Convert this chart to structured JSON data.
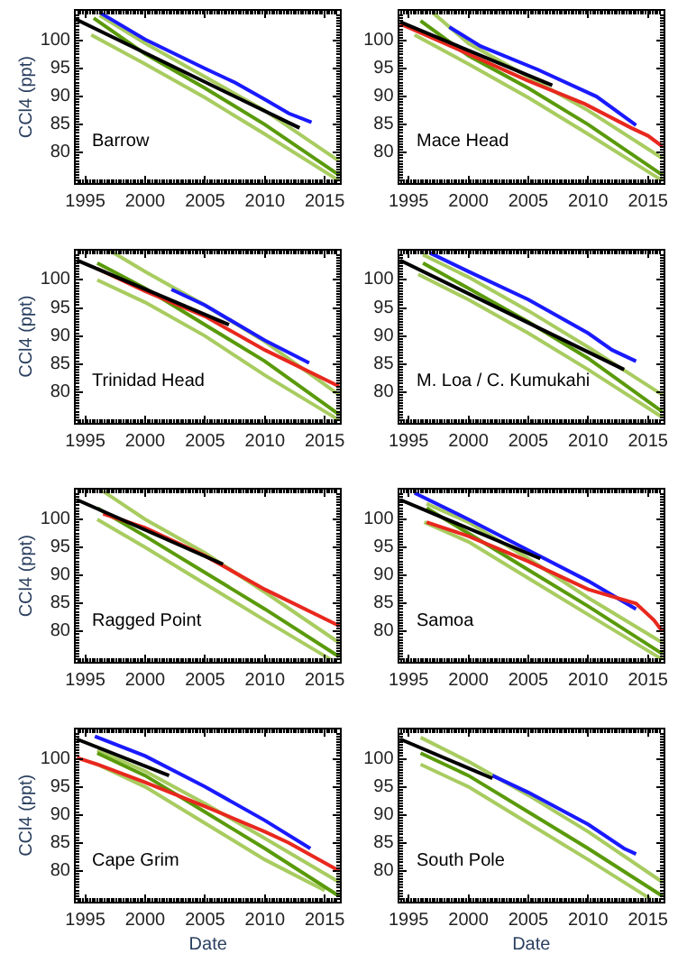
{
  "chart_data": [
    {
      "type": "line",
      "ylabel": "CCl4 (ppt)",
      "annotations": [
        "Barrow"
      ],
      "xlim": [
        1994.2,
        2016.3
      ],
      "ylim": [
        74.5,
        105.3
      ],
      "xticks": [
        1995,
        2000,
        2005,
        2010,
        2015
      ],
      "yticks": [
        80,
        85,
        90,
        95,
        100
      ],
      "series": [
        {
          "color": "#a8cc60",
          "x": [
            1996.2,
            2000,
            2005,
            2010,
            2016.2
          ],
          "values": [
            104.5,
            99.5,
            93.5,
            87.5,
            78.5
          ]
        },
        {
          "color": "#a8cc60",
          "x": [
            1995.5,
            2000,
            2005,
            2010,
            2016.2
          ],
          "values": [
            101,
            95.8,
            89.8,
            83.3,
            75
          ]
        },
        {
          "color": "#5a9a0a",
          "x": [
            1995.7,
            2000,
            2005,
            2010,
            2016.2
          ],
          "values": [
            104,
            97.6,
            91.5,
            85,
            76
          ]
        },
        {
          "color": "#1a1aff",
          "x": [
            1996.2,
            2000,
            2005,
            2007.5,
            2010,
            2012,
            2013.9
          ],
          "values": [
            105,
            100.2,
            95,
            92.5,
            89.5,
            87,
            85.4
          ]
        },
        {
          "color": "#000000",
          "x": [
            1994.2,
            2012.9
          ],
          "values": [
            103.8,
            84.4
          ]
        }
      ]
    },
    {
      "type": "line",
      "annotations": [
        "Mace Head"
      ],
      "xlim": [
        1994.2,
        2016.3
      ],
      "ylim": [
        74.5,
        105.3
      ],
      "xticks": [
        1995,
        2000,
        2005,
        2010,
        2015
      ],
      "yticks": [
        80,
        85,
        90,
        95,
        100
      ],
      "series": [
        {
          "color": "#a8cc60",
          "x": [
            1997,
            2000,
            2005,
            2010,
            2016.2
          ],
          "values": [
            105,
            99.5,
            93.5,
            87.5,
            79
          ]
        },
        {
          "color": "#a8cc60",
          "x": [
            1995.5,
            2000,
            2005,
            2010,
            2016.2
          ],
          "values": [
            101,
            95.8,
            89.8,
            83.3,
            75
          ]
        },
        {
          "color": "#5a9a0a",
          "x": [
            1996,
            2000,
            2005,
            2010,
            2016.2
          ],
          "values": [
            103.5,
            97.3,
            91.5,
            85,
            76
          ]
        },
        {
          "color": "#1a1aff",
          "x": [
            1998.4,
            2001,
            2005.8,
            2010.7,
            2014
          ],
          "values": [
            102.4,
            99,
            94.8,
            90,
            84.9
          ]
        },
        {
          "color": "#e8281e",
          "x": [
            1994.3,
            2000,
            2004.9,
            2009.7,
            2013.6,
            2015,
            2016.2
          ],
          "values": [
            103,
            97.6,
            92.9,
            88.7,
            84.4,
            83,
            81.1
          ]
        },
        {
          "color": "#000000",
          "x": [
            1994.3,
            2007
          ],
          "values": [
            103.3,
            92
          ]
        }
      ]
    },
    {
      "type": "line",
      "ylabel": "CCl4 (ppt)",
      "annotations": [
        "Trinidad Head"
      ],
      "xlim": [
        1994.2,
        2016.3
      ],
      "ylim": [
        74.5,
        105.3
      ],
      "xticks": [
        1995,
        2000,
        2005,
        2010,
        2015
      ],
      "yticks": [
        80,
        85,
        90,
        95,
        100
      ],
      "series": [
        {
          "color": "#a8cc60",
          "x": [
            1997,
            2000,
            2005,
            2010,
            2016.2
          ],
          "values": [
            105.3,
            101.5,
            95.5,
            89,
            79.5
          ]
        },
        {
          "color": "#a8cc60",
          "x": [
            1996,
            2000,
            2005,
            2010,
            2016.2
          ],
          "values": [
            100,
            96,
            90,
            83,
            75
          ]
        },
        {
          "color": "#5a9a0a",
          "x": [
            1996,
            2000,
            2005,
            2010,
            2016.2
          ],
          "values": [
            103,
            98.5,
            92,
            85.5,
            76
          ]
        },
        {
          "color": "#1a1aff",
          "x": [
            2002.2,
            2005,
            2010,
            2013.7
          ],
          "values": [
            98.3,
            95.5,
            89.2,
            85.2
          ]
        },
        {
          "color": "#e8281e",
          "x": [
            1996,
            2000,
            2005,
            2010,
            2016.2
          ],
          "values": [
            102,
            98,
            93.5,
            87.5,
            81
          ]
        },
        {
          "color": "#000000",
          "x": [
            1994.3,
            2007
          ],
          "values": [
            103.5,
            92
          ]
        }
      ]
    },
    {
      "type": "line",
      "annotations": [
        "M. Loa / C. Kumukahi"
      ],
      "xlim": [
        1994.2,
        2016.3
      ],
      "ylim": [
        74.5,
        105.3
      ],
      "xticks": [
        1995,
        2000,
        2005,
        2010,
        2015
      ],
      "yticks": [
        80,
        85,
        90,
        95,
        100
      ],
      "series": [
        {
          "color": "#a8cc60",
          "x": [
            1996.2,
            2000,
            2005,
            2010,
            2016.2
          ],
          "values": [
            104.5,
            100.5,
            94.5,
            88,
            79.5
          ]
        },
        {
          "color": "#a8cc60",
          "x": [
            1995.8,
            2000,
            2005,
            2010,
            2016.2
          ],
          "values": [
            101,
            96.5,
            90.5,
            84,
            75.5
          ]
        },
        {
          "color": "#5a9a0a",
          "x": [
            1996.2,
            2000,
            2005,
            2010,
            2016.2
          ],
          "values": [
            103,
            98.5,
            92.5,
            86,
            76.5
          ]
        },
        {
          "color": "#1a1aff",
          "x": [
            1996.8,
            2000,
            2005,
            2010,
            2012,
            2014
          ],
          "values": [
            104.8,
            101.5,
            96.5,
            90.5,
            87.5,
            85.5
          ]
        },
        {
          "color": "#000000",
          "x": [
            1994.3,
            2013
          ],
          "values": [
            103.5,
            84
          ]
        }
      ]
    },
    {
      "type": "line",
      "ylabel": "CCl4 (ppt)",
      "annotations": [
        "Ragged Point"
      ],
      "xlim": [
        1994.2,
        2016.3
      ],
      "ylim": [
        74.5,
        105.3
      ],
      "xticks": [
        1995,
        2000,
        2005,
        2010,
        2015
      ],
      "yticks": [
        80,
        85,
        90,
        95,
        100
      ],
      "series": [
        {
          "color": "#a8cc60",
          "x": [
            1996.5,
            2000,
            2005,
            2010,
            2016.2
          ],
          "values": [
            105,
            100,
            94,
            87,
            78
          ]
        },
        {
          "color": "#a8cc60",
          "x": [
            1996,
            2000,
            2005,
            2010,
            2015.5
          ],
          "values": [
            100,
            95,
            88.5,
            82,
            75
          ]
        },
        {
          "color": "#5a9a0a",
          "x": [
            1996,
            2000,
            2005,
            2010,
            2016.2
          ],
          "values": [
            102,
            97,
            90.5,
            84,
            75.5
          ]
        },
        {
          "color": "#e8281e",
          "x": [
            1996.5,
            2000,
            2005,
            2010,
            2016.2
          ],
          "values": [
            101,
            98.5,
            93.5,
            87.5,
            81
          ]
        },
        {
          "color": "#000000",
          "x": [
            1994.3,
            2006.5
          ],
          "values": [
            103.5,
            92
          ]
        }
      ]
    },
    {
      "type": "line",
      "annotations": [
        "Samoa"
      ],
      "xlim": [
        1994.2,
        2016.3
      ],
      "ylim": [
        74.5,
        105.3
      ],
      "xticks": [
        1995,
        2000,
        2005,
        2010,
        2015
      ],
      "yticks": [
        80,
        85,
        90,
        95,
        100
      ],
      "series": [
        {
          "color": "#a8cc60",
          "x": [
            1996.5,
            2000,
            2005,
            2010,
            2016.2
          ],
          "values": [
            102.8,
            99.5,
            93,
            86,
            78
          ]
        },
        {
          "color": "#a8cc60",
          "x": [
            1996.3,
            2000,
            2005,
            2010,
            2016.2
          ],
          "values": [
            99.5,
            96,
            89.5,
            83,
            75
          ]
        },
        {
          "color": "#5a9a0a",
          "x": [
            1996.5,
            2000,
            2005,
            2010,
            2016.2
          ],
          "values": [
            102,
            97.5,
            91,
            84.5,
            76
          ]
        },
        {
          "color": "#1a1aff",
          "x": [
            1995.5,
            2000,
            2005,
            2010,
            2014
          ],
          "values": [
            104.7,
            100,
            94.5,
            89,
            84
          ]
        },
        {
          "color": "#e8281e",
          "x": [
            1996.5,
            2000,
            2005,
            2010,
            2014,
            2015.5,
            2016.2
          ],
          "values": [
            99.5,
            97,
            92.5,
            87.5,
            85,
            82,
            80
          ]
        },
        {
          "color": "#000000",
          "x": [
            1994.3,
            2006
          ],
          "values": [
            103.5,
            93
          ]
        }
      ]
    },
    {
      "type": "line",
      "ylabel": "CCl4 (ppt)",
      "xlabel": "Date",
      "annotations": [
        "Cape Grim"
      ],
      "xlim": [
        1994.2,
        2016.3
      ],
      "ylim": [
        74.5,
        105.3
      ],
      "xticks": [
        1995,
        2000,
        2005,
        2010,
        2015
      ],
      "yticks": [
        80,
        85,
        90,
        95,
        100
      ],
      "series": [
        {
          "color": "#a8cc60",
          "x": [
            1996,
            2000,
            2005,
            2010,
            2016.2
          ],
          "values": [
            101.5,
            97.8,
            92,
            85.8,
            78
          ]
        },
        {
          "color": "#a8cc60",
          "x": [
            1996,
            2000,
            2005,
            2010,
            2015
          ],
          "values": [
            99,
            95,
            88.5,
            82,
            76.5
          ]
        },
        {
          "color": "#5a9a0a",
          "x": [
            1996,
            2000,
            2005,
            2010,
            2016.2
          ],
          "values": [
            101,
            97,
            90.5,
            84,
            75.5
          ]
        },
        {
          "color": "#1a1aff",
          "x": [
            1995.8,
            2000,
            2005,
            2010,
            2013.8
          ],
          "values": [
            104,
            100.5,
            95,
            89,
            84
          ]
        },
        {
          "color": "#e8281e",
          "x": [
            1994.3,
            1996,
            2000,
            2005,
            2010,
            2012,
            2016.2
          ],
          "values": [
            100.2,
            99,
            95.8,
            91.5,
            87,
            85,
            80
          ]
        },
        {
          "color": "#000000",
          "x": [
            1994.3,
            2002
          ],
          "values": [
            103.5,
            97
          ]
        }
      ]
    },
    {
      "type": "line",
      "xlabel": "Date",
      "annotations": [
        "South Pole"
      ],
      "xlim": [
        1994.2,
        2016.3
      ],
      "ylim": [
        74.5,
        105.3
      ],
      "xticks": [
        1995,
        2000,
        2005,
        2010,
        2015
      ],
      "yticks": [
        80,
        85,
        90,
        95,
        100
      ],
      "series": [
        {
          "color": "#a8cc60",
          "x": [
            1996,
            2000,
            2005,
            2010,
            2016.2
          ],
          "values": [
            103.8,
            99.5,
            93.5,
            87,
            78
          ]
        },
        {
          "color": "#a8cc60",
          "x": [
            1996,
            2000,
            2005,
            2010,
            2015.2
          ],
          "values": [
            99,
            95,
            88.5,
            82,
            75
          ]
        },
        {
          "color": "#5a9a0a",
          "x": [
            1996,
            2000,
            2005,
            2010,
            2016.2
          ],
          "values": [
            101,
            97,
            90.5,
            84,
            75.5
          ]
        },
        {
          "color": "#1a1aff",
          "x": [
            2002,
            2005,
            2010,
            2013,
            2014
          ],
          "values": [
            97,
            94,
            88.3,
            84,
            83
          ]
        },
        {
          "color": "#000000",
          "x": [
            1994.3,
            2002
          ],
          "values": [
            103.5,
            96.5
          ]
        }
      ]
    }
  ]
}
